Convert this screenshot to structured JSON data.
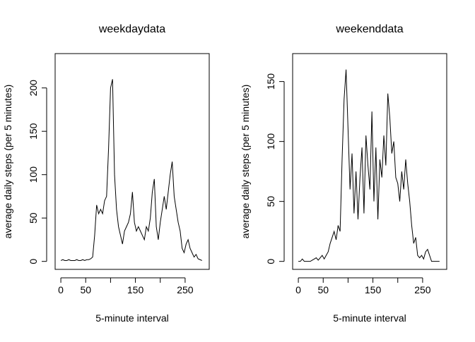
{
  "chart_data": [
    {
      "type": "line",
      "title": "weekdaydata",
      "xlabel": "5-minute interval",
      "ylabel": "average daily steps (per 5 minutes)",
      "color": "#000000",
      "x": [
        0,
        4,
        8,
        12,
        16,
        20,
        24,
        28,
        32,
        36,
        40,
        44,
        48,
        52,
        56,
        60,
        64,
        68,
        72,
        76,
        80,
        84,
        88,
        92,
        96,
        100,
        104,
        108,
        112,
        116,
        120,
        124,
        128,
        132,
        136,
        140,
        144,
        148,
        152,
        156,
        160,
        164,
        168,
        172,
        176,
        180,
        184,
        188,
        192,
        196,
        200,
        204,
        208,
        212,
        216,
        220,
        224,
        228,
        232,
        236,
        240,
        244,
        248,
        252,
        256,
        260,
        264,
        268,
        272,
        276,
        280,
        284
      ],
      "values": [
        1,
        2,
        1,
        1,
        2,
        1,
        1,
        1,
        2,
        1,
        1,
        2,
        1,
        2,
        2,
        3,
        5,
        30,
        65,
        55,
        60,
        55,
        70,
        75,
        130,
        200,
        210,
        100,
        60,
        40,
        30,
        20,
        35,
        40,
        45,
        55,
        80,
        45,
        35,
        40,
        35,
        30,
        25,
        40,
        35,
        50,
        80,
        95,
        40,
        25,
        45,
        60,
        75,
        60,
        80,
        100,
        115,
        75,
        60,
        45,
        35,
        15,
        10,
        20,
        25,
        15,
        10,
        5,
        8,
        3,
        2,
        1
      ],
      "xlim": [
        -11.48,
        298.48
      ],
      "ylim": [
        -9.2,
        239.6
      ],
      "xticks": [
        0,
        50,
        {
          "value": 100,
          "label": null
        },
        150,
        {
          "value": 200,
          "label": null
        },
        250
      ],
      "yticks": [
        0,
        50,
        100,
        150,
        200
      ]
    },
    {
      "type": "line",
      "title": "weekenddata",
      "xlabel": "5-minute interval",
      "ylabel": "average daily steps (per 5 minutes)",
      "color": "#000000",
      "x": [
        0,
        4,
        8,
        12,
        16,
        20,
        24,
        28,
        32,
        36,
        40,
        44,
        48,
        52,
        56,
        60,
        64,
        68,
        72,
        76,
        80,
        84,
        88,
        92,
        96,
        100,
        104,
        108,
        112,
        116,
        120,
        124,
        128,
        132,
        136,
        140,
        144,
        148,
        152,
        156,
        160,
        164,
        168,
        172,
        176,
        180,
        184,
        188,
        192,
        196,
        200,
        204,
        208,
        212,
        216,
        220,
        224,
        228,
        232,
        236,
        240,
        244,
        248,
        252,
        256,
        260,
        264,
        268,
        272,
        276,
        280,
        284
      ],
      "values": [
        0,
        0,
        2,
        0,
        0,
        0,
        0,
        1,
        2,
        3,
        1,
        3,
        5,
        2,
        5,
        8,
        15,
        20,
        25,
        18,
        30,
        25,
        85,
        135,
        160,
        110,
        60,
        90,
        40,
        75,
        35,
        70,
        95,
        40,
        105,
        80,
        60,
        125,
        50,
        95,
        35,
        85,
        70,
        105,
        80,
        140,
        120,
        90,
        100,
        70,
        65,
        50,
        75,
        60,
        85,
        65,
        50,
        30,
        15,
        20,
        5,
        3,
        5,
        2,
        8,
        10,
        5,
        0,
        0,
        0,
        0,
        0
      ],
      "xlim": [
        -11.48,
        298.48
      ],
      "ylim": [
        -6.66,
        173.3
      ],
      "xticks": [
        0,
        50,
        {
          "value": 100,
          "label": null
        },
        150,
        {
          "value": 200,
          "label": null
        },
        250
      ],
      "yticks": [
        0,
        50,
        100,
        150
      ]
    }
  ]
}
